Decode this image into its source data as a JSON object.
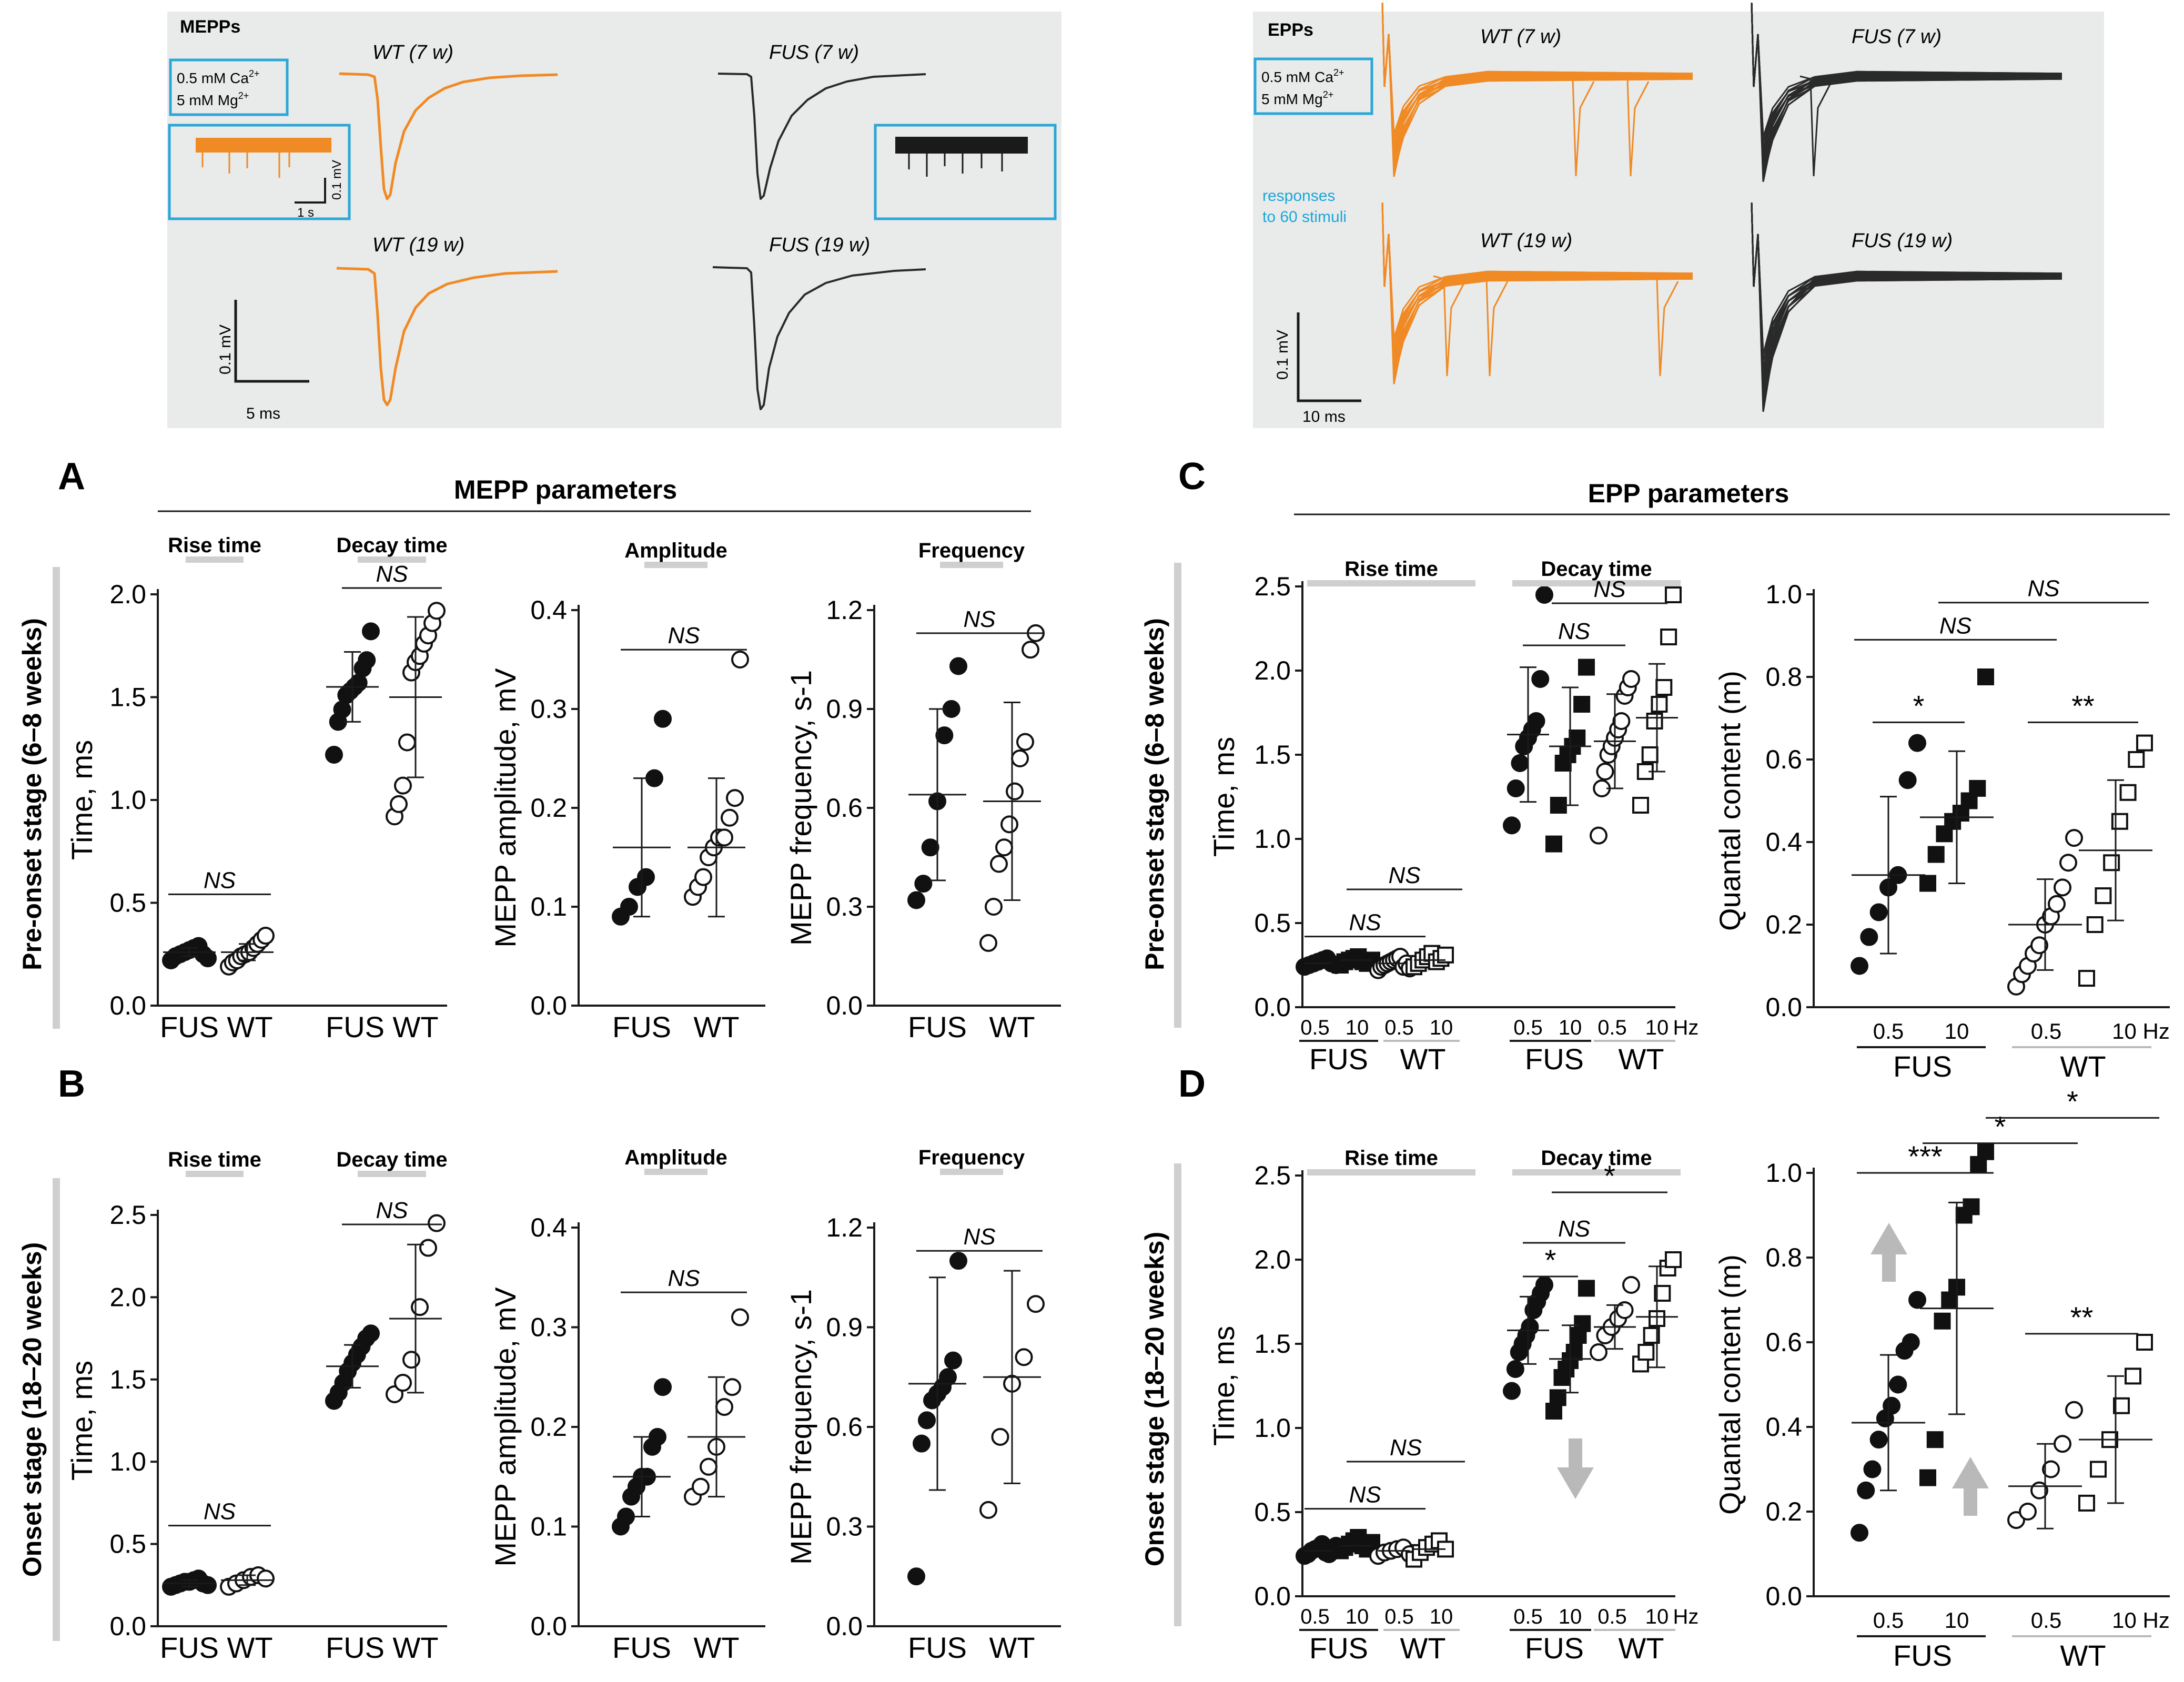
{
  "colors": {
    "wt_trace": "#f08a24",
    "fus_trace": "#2a2a2a",
    "inset_border": "#2aa7d8",
    "panel_bg": "#e9eaea",
    "stage_bar": "#cfcfcf",
    "cyan_text": "#1aa7d8",
    "arrow": "#b9b9b9"
  },
  "traces": {
    "mepps": {
      "title": "MEPPs",
      "cond_line1": "0.5 mM Ca",
      "cond_line2": "5 mM Mg",
      "sup": "2+",
      "labels": [
        "WT (7 w)",
        "FUS (7 w)",
        "WT (19 w)",
        "FUS (19 w)"
      ],
      "scale_mv": "0.1 mV",
      "scale_ms": "5 ms",
      "inset_mv": "0.1 mV",
      "inset_s": "1 s"
    },
    "epps": {
      "title": "EPPs",
      "cond_line1": "0.5 mM Ca",
      "cond_line2": "5 mM Mg",
      "sup": "2+",
      "labels": [
        "WT (7 w)",
        "FUS (7 w)",
        "WT (19 w)",
        "FUS (19 w)"
      ],
      "note_line1": "responses",
      "note_line2": "to 60 stimuli",
      "scale_mv": "0.1 mV",
      "scale_ms": "10 ms"
    }
  },
  "panels": {
    "A": {
      "letter": "A",
      "header": "MEPP parameters",
      "stage": "Pre-onset stage (6–8 weeks)"
    },
    "B": {
      "letter": "B",
      "stage": "Onset stage (18–20 weeks)"
    },
    "C": {
      "letter": "C",
      "header": "EPP parameters",
      "stage": "Pre-onset stage (6–8 weeks)"
    },
    "D": {
      "letter": "D",
      "stage": "Onset stage (18–20 weeks)"
    }
  },
  "labels": {
    "ns": "NS",
    "star1": "*",
    "star2": "**",
    "star3": "***",
    "rise_time": "Rise time",
    "decay_time": "Decay time",
    "amplitude": "Amplitude",
    "frequency": "Frequency",
    "fus": "FUS",
    "wt": "WT",
    "f05": "0.5",
    "f10": "10",
    "f10hz": "10 Hz",
    "hz": "Hz"
  },
  "chart_data": [
    {
      "id": "A_time",
      "type": "scatter",
      "ylabel": "Time, ms",
      "ylim": [
        0,
        2.0
      ],
      "yticks": [
        "0.0",
        "0.5",
        "1.0",
        "1.5",
        "2.0"
      ],
      "series": [
        {
          "name": "FUS rise time",
          "y": [
            0.22,
            0.24,
            0.25,
            0.26,
            0.27,
            0.28,
            0.29,
            0.25,
            0.23
          ],
          "mean": 0.26,
          "sd": 0.02
        },
        {
          "name": "WT rise time",
          "y": [
            0.19,
            0.21,
            0.22,
            0.24,
            0.25,
            0.26,
            0.28,
            0.3,
            0.32,
            0.34
          ],
          "mean": 0.26,
          "sd": 0.04
        },
        {
          "name": "FUS decay time",
          "y": [
            1.22,
            1.38,
            1.44,
            1.51,
            1.53,
            1.55,
            1.57,
            1.64,
            1.68,
            1.82
          ],
          "mean": 1.55,
          "sd": 0.17
        },
        {
          "name": "WT decay time",
          "y": [
            0.92,
            0.98,
            1.07,
            1.28,
            1.62,
            1.67,
            1.7,
            1.76,
            1.8,
            1.86,
            1.92
          ],
          "mean": 1.5,
          "sd": 0.39
        }
      ],
      "ylabel_text": "Time, ms"
    },
    {
      "id": "A_amp",
      "type": "scatter",
      "ylabel": "MEPP amplitude, mV",
      "ylim": [
        0,
        0.4
      ],
      "yticks": [
        "0.0",
        "0.1",
        "0.2",
        "0.3",
        "0.4"
      ],
      "series": [
        {
          "name": "FUS",
          "y": [
            0.09,
            0.1,
            0.12,
            0.13,
            0.23,
            0.29
          ],
          "mean": 0.16,
          "sd": 0.07
        },
        {
          "name": "WT",
          "y": [
            0.11,
            0.12,
            0.13,
            0.15,
            0.16,
            0.17,
            0.17,
            0.19,
            0.21,
            0.35
          ],
          "mean": 0.16,
          "sd": 0.07
        }
      ]
    },
    {
      "id": "A_freq",
      "type": "scatter",
      "ylabel": "MEPP frequency, s-1",
      "ylim": [
        0,
        1.2
      ],
      "yticks": [
        "0.0",
        "0.3",
        "0.6",
        "0.9",
        "1.2"
      ],
      "series": [
        {
          "name": "FUS",
          "y": [
            0.32,
            0.37,
            0.48,
            0.62,
            0.82,
            0.9,
            1.03
          ],
          "mean": 0.64,
          "sd": 0.26
        },
        {
          "name": "WT",
          "y": [
            0.19,
            0.3,
            0.43,
            0.48,
            0.55,
            0.65,
            0.75,
            0.8,
            1.08,
            1.13
          ],
          "mean": 0.62,
          "sd": 0.3
        }
      ]
    },
    {
      "id": "B_time",
      "type": "scatter",
      "ylabel": "Time, ms",
      "ylim": [
        0,
        2.5
      ],
      "yticks": [
        "0.0",
        "0.5",
        "1.0",
        "1.5",
        "2.0",
        "2.5"
      ],
      "series": [
        {
          "name": "FUS rise time",
          "y": [
            0.24,
            0.25,
            0.26,
            0.27,
            0.27,
            0.28,
            0.29,
            0.26,
            0.25
          ],
          "mean": 0.26,
          "sd": 0.02
        },
        {
          "name": "WT rise time",
          "y": [
            0.24,
            0.26,
            0.28,
            0.3,
            0.31,
            0.29
          ],
          "mean": 0.28,
          "sd": 0.03
        },
        {
          "name": "FUS decay time",
          "y": [
            1.37,
            1.42,
            1.48,
            1.55,
            1.6,
            1.65,
            1.7,
            1.75,
            1.78
          ],
          "mean": 1.58,
          "sd": 0.13
        },
        {
          "name": "WT decay time",
          "y": [
            1.41,
            1.48,
            1.62,
            1.94,
            2.3,
            2.45
          ],
          "mean": 1.87,
          "sd": 0.45
        }
      ]
    },
    {
      "id": "B_amp",
      "type": "scatter",
      "ylabel": "MEPP amplitude, mV",
      "ylim": [
        0,
        0.4
      ],
      "yticks": [
        "0.0",
        "0.1",
        "0.2",
        "0.3",
        "0.4"
      ],
      "series": [
        {
          "name": "FUS",
          "y": [
            0.1,
            0.11,
            0.13,
            0.14,
            0.15,
            0.15,
            0.18,
            0.19,
            0.24
          ],
          "mean": 0.15,
          "sd": 0.04
        },
        {
          "name": "WT",
          "y": [
            0.13,
            0.14,
            0.16,
            0.18,
            0.22,
            0.24,
            0.31
          ],
          "mean": 0.19,
          "sd": 0.06
        }
      ]
    },
    {
      "id": "B_freq",
      "type": "scatter",
      "ylabel": "MEPP frequency, s-1",
      "ylim": [
        0,
        1.2
      ],
      "yticks": [
        "0.0",
        "0.3",
        "0.6",
        "0.9",
        "1.2"
      ],
      "series": [
        {
          "name": "FUS",
          "y": [
            0.15,
            0.55,
            0.62,
            0.68,
            0.7,
            0.72,
            0.75,
            0.8,
            1.1
          ],
          "mean": 0.73,
          "sd": 0.32
        },
        {
          "name": "WT",
          "y": [
            0.35,
            0.57,
            0.73,
            0.81,
            0.97
          ],
          "mean": 0.75,
          "sd": 0.32
        }
      ]
    },
    {
      "id": "C_time",
      "type": "scatter",
      "ylabel": "Time, ms",
      "ylim": [
        0,
        2.75
      ],
      "yticks": [
        "0.0",
        "0.5",
        "1.0",
        "1.5",
        "2.0",
        "2.5"
      ],
      "series": [
        {
          "name": "FUS 0.5 Hz rise",
          "y": [
            0.24,
            0.25,
            0.26,
            0.27,
            0.28,
            0.29,
            0.26,
            0.25
          ],
          "mean": 0.26
        },
        {
          "name": "FUS 10 Hz rise",
          "y": [
            0.25,
            0.27,
            0.28,
            0.29,
            0.3,
            0.27,
            0.26,
            0.28
          ],
          "mean": 0.28
        },
        {
          "name": "WT 0.5 Hz rise",
          "y": [
            0.22,
            0.24,
            0.25,
            0.26,
            0.27,
            0.28,
            0.29,
            0.3,
            0.24,
            0.26,
            0.23
          ],
          "mean": 0.26
        },
        {
          "name": "WT 10 Hz rise",
          "y": [
            0.24,
            0.26,
            0.28,
            0.3,
            0.32,
            0.27,
            0.29,
            0.31
          ],
          "mean": 0.28
        },
        {
          "name": "FUS 0.5 Hz decay",
          "y": [
            1.08,
            1.3,
            1.45,
            1.55,
            1.6,
            1.65,
            1.7,
            1.95,
            2.45
          ],
          "mean": 1.62,
          "sd": 0.4
        },
        {
          "name": "FUS 10 Hz decay",
          "y": [
            0.97,
            1.2,
            1.45,
            1.5,
            1.55,
            1.6,
            1.8,
            2.02
          ],
          "mean": 1.55,
          "sd": 0.35
        },
        {
          "name": "WT 0.5 Hz decay",
          "y": [
            1.02,
            1.3,
            1.4,
            1.5,
            1.55,
            1.6,
            1.65,
            1.7,
            1.85,
            1.9,
            1.95
          ],
          "mean": 1.58,
          "sd": 0.28
        },
        {
          "name": "WT 10 Hz decay",
          "y": [
            1.2,
            1.4,
            1.5,
            1.7,
            1.8,
            1.9,
            2.2,
            2.45
          ],
          "mean": 1.72,
          "sd": 0.32
        }
      ]
    },
    {
      "id": "C_qc",
      "type": "scatter",
      "ylabel": "Quantal content (m)",
      "ylim": [
        0,
        1.0
      ],
      "yticks": [
        "0.0",
        "0.2",
        "0.4",
        "0.6",
        "0.8",
        "1.0"
      ],
      "series": [
        {
          "name": "FUS 0.5 Hz",
          "y": [
            0.1,
            0.17,
            0.23,
            0.29,
            0.32,
            0.55,
            0.64
          ],
          "mean": 0.32,
          "sd": 0.19
        },
        {
          "name": "FUS 10 Hz",
          "y": [
            0.3,
            0.37,
            0.42,
            0.45,
            0.47,
            0.5,
            0.53,
            0.8
          ],
          "mean": 0.46,
          "sd": 0.16
        },
        {
          "name": "WT 0.5 Hz",
          "y": [
            0.05,
            0.08,
            0.1,
            0.13,
            0.15,
            0.2,
            0.22,
            0.25,
            0.29,
            0.35,
            0.41
          ],
          "mean": 0.2,
          "sd": 0.11
        },
        {
          "name": "WT 10 Hz",
          "y": [
            0.07,
            0.2,
            0.27,
            0.35,
            0.45,
            0.52,
            0.6,
            0.64
          ],
          "mean": 0.38,
          "sd": 0.17
        }
      ]
    },
    {
      "id": "D_time",
      "type": "scatter",
      "ylabel": "Time, ms",
      "ylim": [
        0,
        2.75
      ],
      "yticks": [
        "0.0",
        "0.5",
        "1.0",
        "1.5",
        "2.0",
        "2.5"
      ],
      "series": [
        {
          "name": "FUS 0.5 Hz rise",
          "y": [
            0.24,
            0.25,
            0.27,
            0.28,
            0.29,
            0.31,
            0.26,
            0.25,
            0.27,
            0.3
          ],
          "mean": 0.27
        },
        {
          "name": "FUS 10 Hz rise",
          "y": [
            0.27,
            0.29,
            0.31,
            0.33,
            0.35,
            0.3,
            0.28,
            0.32
          ],
          "mean": 0.3
        },
        {
          "name": "WT 0.5 Hz rise",
          "y": [
            0.24,
            0.26,
            0.27,
            0.28,
            0.29,
            0.25
          ],
          "mean": 0.27
        },
        {
          "name": "WT 10 Hz rise",
          "y": [
            0.22,
            0.26,
            0.29,
            0.31,
            0.33,
            0.28
          ],
          "mean": 0.28
        },
        {
          "name": "FUS 0.5 Hz decay",
          "y": [
            1.22,
            1.35,
            1.45,
            1.5,
            1.55,
            1.6,
            1.7,
            1.75,
            1.8,
            1.85
          ],
          "mean": 1.58,
          "sd": 0.2
        },
        {
          "name": "FUS 10 Hz decay",
          "y": [
            1.1,
            1.18,
            1.3,
            1.35,
            1.4,
            1.45,
            1.55,
            1.62,
            1.83
          ],
          "mean": 1.41,
          "sd": 0.2
        },
        {
          "name": "WT 0.5 Hz decay",
          "y": [
            1.45,
            1.55,
            1.6,
            1.65,
            1.7,
            1.85
          ],
          "mean": 1.6,
          "sd": 0.13
        },
        {
          "name": "WT 10 Hz decay",
          "y": [
            1.38,
            1.45,
            1.55,
            1.65,
            1.8,
            1.95,
            2.0
          ],
          "mean": 1.66,
          "sd": 0.3
        }
      ]
    },
    {
      "id": "D_qc",
      "type": "scatter",
      "ylabel": "Quantal content (m)",
      "ylim": [
        0,
        1.1
      ],
      "yticks": [
        "0.0",
        "0.2",
        "0.4",
        "0.6",
        "0.8",
        "1.0"
      ],
      "series": [
        {
          "name": "FUS 0.5 Hz",
          "y": [
            0.15,
            0.25,
            0.3,
            0.37,
            0.42,
            0.45,
            0.5,
            0.58,
            0.6,
            0.7
          ],
          "mean": 0.41,
          "sd": 0.16
        },
        {
          "name": "FUS 10 Hz",
          "y": [
            0.28,
            0.37,
            0.65,
            0.7,
            0.73,
            0.9,
            0.92,
            1.02,
            1.05
          ],
          "mean": 0.68,
          "sd": 0.25
        },
        {
          "name": "WT 0.5 Hz",
          "y": [
            0.18,
            0.2,
            0.25,
            0.3,
            0.36,
            0.44
          ],
          "mean": 0.26,
          "sd": 0.1
        },
        {
          "name": "WT 10 Hz",
          "y": [
            0.22,
            0.3,
            0.37,
            0.45,
            0.52,
            0.6
          ],
          "mean": 0.37,
          "sd": 0.15
        }
      ]
    }
  ]
}
